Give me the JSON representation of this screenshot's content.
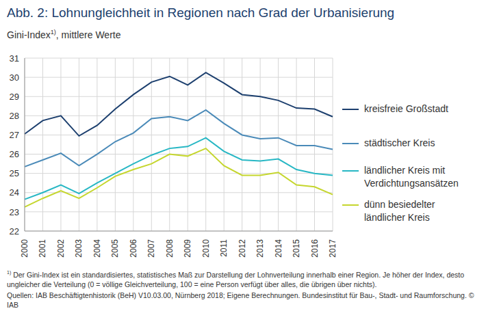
{
  "chart_data": {
    "type": "line",
    "title": "Abb. 2: Lohnungleichheit in Regionen nach Grad der Urbanisierung",
    "subtitle": "Gini-Index",
    "subtitle_note_mark": "1)",
    "subtitle_rest": ", mittlere Werte",
    "footnote_mark": "1)",
    "footnote": "Der Gini-Index ist ein standardisiertes, statistisches Maß zur Darstellung der Lohnverteilung innerhalb einer Region. Je höher der Index, desto ungleicher die Verteilung (0 = völlige Gleichverteilung, 100 = eine Person verfügt über alles, die übrigen über nichts).",
    "source": "Quellen: IAB Beschäftigtenhistorik (BeH) V10.03.00, Nürnberg 2018; Eigene Berechnungen. Bundesinstitut für Bau-, Stadt- und Raumforschung. © IAB",
    "categories": [
      "2000",
      "2001",
      "2002",
      "2003",
      "2004",
      "2005",
      "2006",
      "2007",
      "2008",
      "2009",
      "2010",
      "2011",
      "2012",
      "2013",
      "2014",
      "2015",
      "2016",
      "2017"
    ],
    "series": [
      {
        "name": "kreisfreie Großstadt",
        "color": "#1c3f6e",
        "values": [
          27.05,
          27.75,
          28.0,
          26.95,
          27.5,
          28.35,
          29.1,
          29.75,
          30.05,
          29.6,
          30.25,
          29.7,
          29.1,
          29.0,
          28.8,
          28.4,
          28.35,
          27.95
        ]
      },
      {
        "name": "städtischer Kreis",
        "color": "#4a8ab8",
        "values": [
          25.35,
          25.7,
          26.05,
          25.4,
          26.0,
          26.65,
          27.1,
          27.85,
          27.95,
          27.75,
          28.3,
          27.6,
          27.0,
          26.8,
          26.85,
          26.45,
          26.45,
          26.25
        ]
      },
      {
        "name": "ländlicher Kreis mit Verdichtungsansätzen",
        "color": "#27b7c4",
        "values": [
          23.65,
          24.0,
          24.4,
          23.95,
          24.5,
          25.0,
          25.5,
          25.95,
          26.3,
          26.4,
          26.85,
          26.15,
          25.7,
          25.65,
          25.75,
          25.2,
          25.0,
          24.9
        ]
      },
      {
        "name": "dünn besiedelter ländlicher Kreis",
        "color": "#c5d62d",
        "values": [
          23.25,
          23.7,
          24.1,
          23.7,
          24.25,
          24.85,
          25.2,
          25.5,
          26.0,
          25.9,
          26.3,
          25.4,
          24.9,
          24.9,
          25.05,
          24.4,
          24.3,
          23.9
        ]
      }
    ],
    "ylim": [
      22,
      31
    ],
    "yticks": [
      22,
      23,
      24,
      25,
      26,
      27,
      28,
      29,
      30,
      31
    ],
    "grid": true,
    "legend": "right"
  }
}
